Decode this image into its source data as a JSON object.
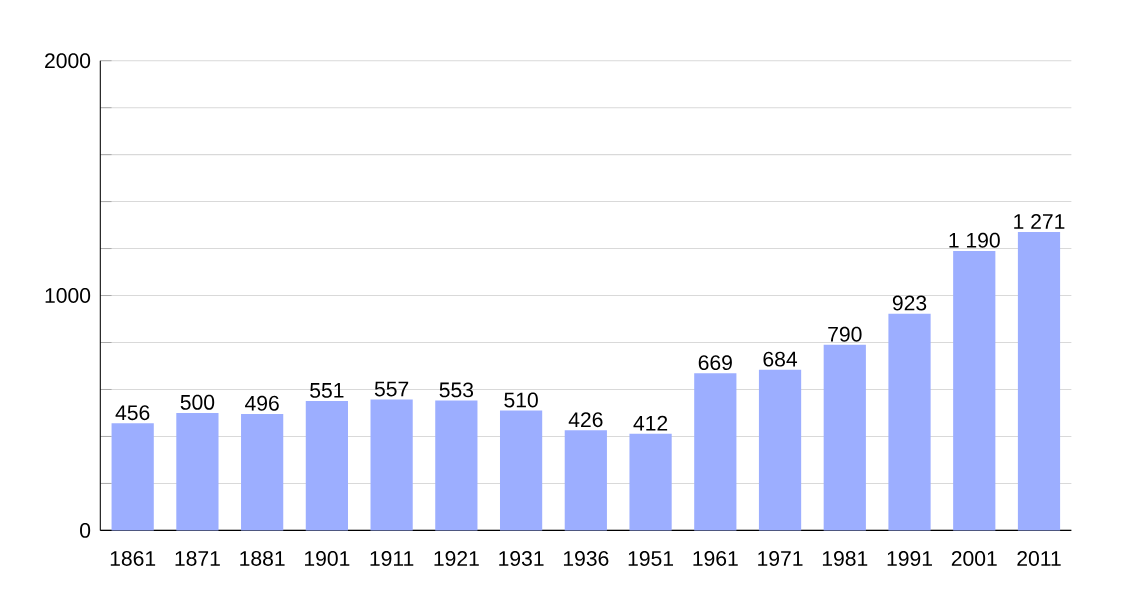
{
  "chart_data": {
    "type": "bar",
    "categories": [
      "1861",
      "1871",
      "1881",
      "1901",
      "1911",
      "1921",
      "1931",
      "1936",
      "1951",
      "1961",
      "1971",
      "1981",
      "1991",
      "2001",
      "2011"
    ],
    "values": [
      456,
      500,
      496,
      551,
      557,
      553,
      510,
      426,
      412,
      669,
      684,
      790,
      923,
      1190,
      1271
    ],
    "value_labels": [
      "456",
      "500",
      "496",
      "551",
      "557",
      "553",
      "510",
      "426",
      "412",
      "669",
      "684",
      "790",
      "923",
      "1 190",
      "1 271"
    ],
    "color": "#9caeff",
    "ylim": [
      0,
      2000
    ],
    "yticks": [
      0,
      {
        "value": 200,
        "label": null
      },
      {
        "value": 400,
        "label": null
      },
      {
        "value": 600,
        "label": null
      },
      {
        "value": 800,
        "label": null
      },
      1000,
      {
        "value": 1200,
        "label": null
      },
      {
        "value": 1400,
        "label": null
      },
      {
        "value": 1600,
        "label": null
      },
      {
        "value": 1800,
        "label": null
      },
      2000
    ],
    "grid": "y"
  }
}
